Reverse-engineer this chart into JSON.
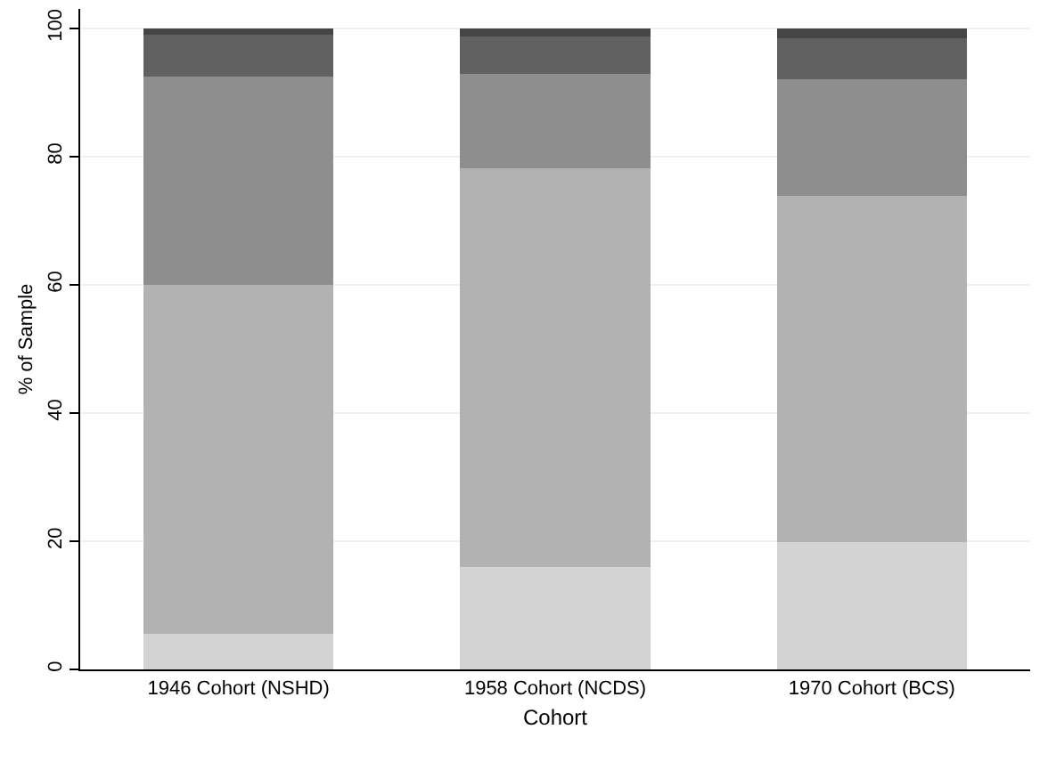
{
  "chart_data": {
    "type": "bar",
    "stacked": true,
    "xlabel": "Cohort",
    "ylabel": "% of Sample",
    "categories": [
      "1946 Cohort (NSHD)",
      "1958 Cohort (NCDS)",
      "1970 Cohort (BCS)"
    ],
    "series": [
      {
        "color": "#d3d3d3",
        "values": [
          5.6,
          16,
          19.8
        ]
      },
      {
        "color": "#b2b2b2",
        "values": [
          54.4,
          62.2,
          54
        ]
      },
      {
        "color": "#8e8e8e",
        "values": [
          32.5,
          14.6,
          18.2
        ]
      },
      {
        "color": "#616161",
        "values": [
          6.5,
          5.9,
          6.4
        ]
      },
      {
        "color": "#454545",
        "values": [
          1,
          1.3,
          1.6
        ]
      }
    ],
    "ylim": [
      0,
      103
    ],
    "yticks": [
      0,
      20,
      40,
      60,
      80,
      100
    ],
    "grid": "y",
    "legend": false
  }
}
